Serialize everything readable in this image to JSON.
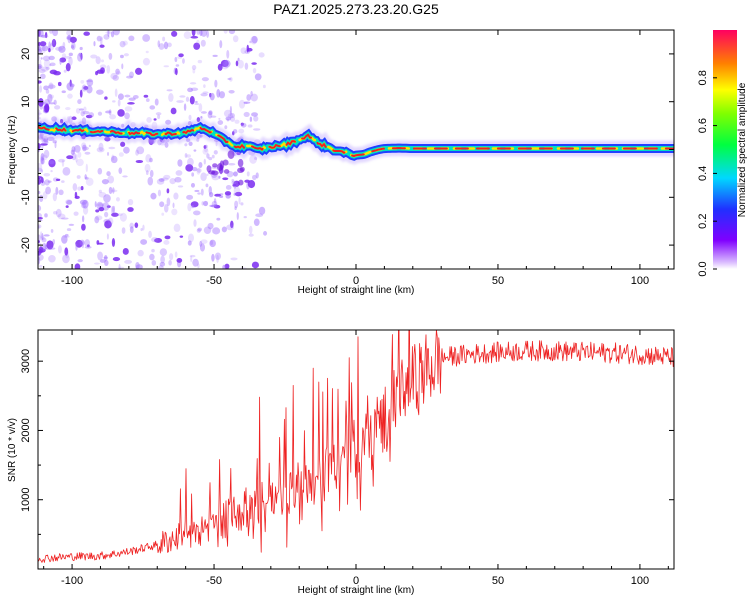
{
  "title": "PAZ1.2025.273.23.20.G25",
  "colors": {
    "snr_line": "#ee2222",
    "ridge_core": "#ee2222",
    "ridge_mid": "#00e0c0",
    "ridge_outer": "#2040ff",
    "speckle": "#a070ff",
    "background": "#ffffff"
  },
  "chart_data": [
    {
      "type": "heatmap",
      "name": "spectrogram",
      "xlabel": "Height of straight line (km)",
      "ylabel": "Frequency (Hz)",
      "xlim": [
        -112,
        112
      ],
      "ylim": [
        -25,
        25
      ],
      "xticks": [
        -100,
        -50,
        0,
        50,
        100
      ],
      "yticks": [
        -20,
        -10,
        0,
        10,
        20
      ],
      "ridge": {
        "x": [
          -112,
          -100,
          -90,
          -80,
          -70,
          -60,
          -55,
          -52,
          -48,
          -45,
          -42,
          -38,
          -35,
          -30,
          -25,
          -20,
          -17,
          -15,
          -12,
          -10,
          -8,
          -5,
          -2,
          0,
          3,
          5,
          8,
          10,
          15,
          20,
          30,
          50,
          70,
          90,
          112
        ],
        "y": [
          4.5,
          4,
          3.8,
          3.5,
          3.2,
          3.5,
          4.5,
          4,
          2.5,
          1.5,
          0.5,
          0.8,
          0,
          0.5,
          1,
          2,
          3,
          2,
          1,
          0.5,
          0,
          -0.5,
          -1,
          -1.2,
          -1,
          -0.5,
          0,
          0.2,
          0.3,
          0.2,
          0.2,
          0.2,
          0.2,
          0.2,
          0.2
        ]
      },
      "colorbar": {
        "label": "Normalized spectral amplitude",
        "ticks": [
          0.0,
          0.2,
          0.4,
          0.6,
          0.8
        ],
        "range": [
          0,
          1
        ],
        "colormap": "rainbow"
      }
    },
    {
      "type": "line",
      "name": "snr",
      "xlabel": "Height of straight line (km)",
      "ylabel": "SNR (10 * v/v)",
      "xlim": [
        -112,
        112
      ],
      "ylim": [
        0,
        3450
      ],
      "xticks": [
        -100,
        -50,
        0,
        50,
        100
      ],
      "yticks": [
        1000,
        2000,
        3000
      ],
      "trend": {
        "x": [
          -112,
          -100,
          -90,
          -80,
          -70,
          -60,
          -50,
          -40,
          -30,
          -20,
          -10,
          0,
          10,
          20,
          30,
          40,
          50,
          60,
          70,
          80,
          90,
          100,
          112
        ],
        "y": [
          150,
          180,
          190,
          250,
          350,
          500,
          650,
          850,
          1000,
          1200,
          1400,
          1750,
          2200,
          2700,
          3050,
          3100,
          3130,
          3150,
          3150,
          3130,
          3120,
          3100,
          3050
        ]
      },
      "spikes": [
        {
          "x": -60,
          "y": 1450
        },
        {
          "x": -48,
          "y": 1580
        },
        {
          "x": -34,
          "y": 2480
        },
        {
          "x": -27,
          "y": 1900
        },
        {
          "x": -22,
          "y": 2650
        },
        {
          "x": -15,
          "y": 2900
        },
        {
          "x": -13,
          "y": 2700
        },
        {
          "x": 4,
          "y": 2500
        },
        {
          "x": -12,
          "y": 550
        }
      ]
    }
  ]
}
